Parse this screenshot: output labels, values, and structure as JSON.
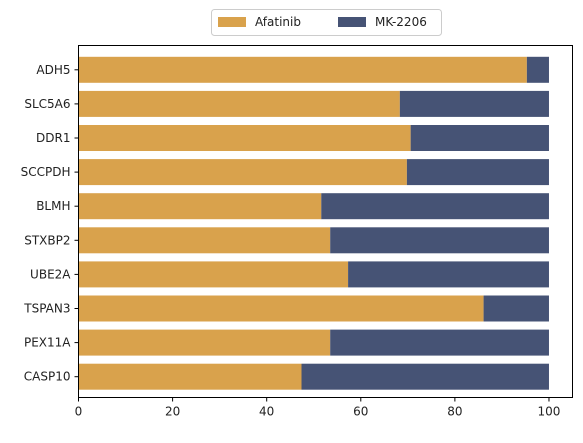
{
  "chart_data": {
    "type": "bar",
    "orientation": "horizontal",
    "stacked": true,
    "categories": [
      "ADH5",
      "SLC5A6",
      "DDR1",
      "SCCPDH",
      "BLMH",
      "STXBP2",
      "UBE2A",
      "TSPAN3",
      "PEX11A",
      "CASP10"
    ],
    "series": [
      {
        "name": "Afatinib",
        "color": "#d9a24c",
        "values": [
          95.3,
          68.3,
          70.6,
          69.8,
          51.6,
          53.5,
          57.3,
          86.1,
          53.5,
          47.4
        ]
      },
      {
        "name": "MK-2206",
        "color": "#465375",
        "values": [
          4.7,
          31.7,
          29.4,
          30.2,
          48.4,
          46.5,
          42.7,
          13.9,
          46.5,
          52.6
        ]
      }
    ],
    "xlim": [
      0,
      105
    ],
    "xticks": [
      0,
      20,
      40,
      60,
      80,
      100
    ],
    "title": "",
    "xlabel": "",
    "ylabel": "",
    "grid": false,
    "legend": "top-center"
  }
}
